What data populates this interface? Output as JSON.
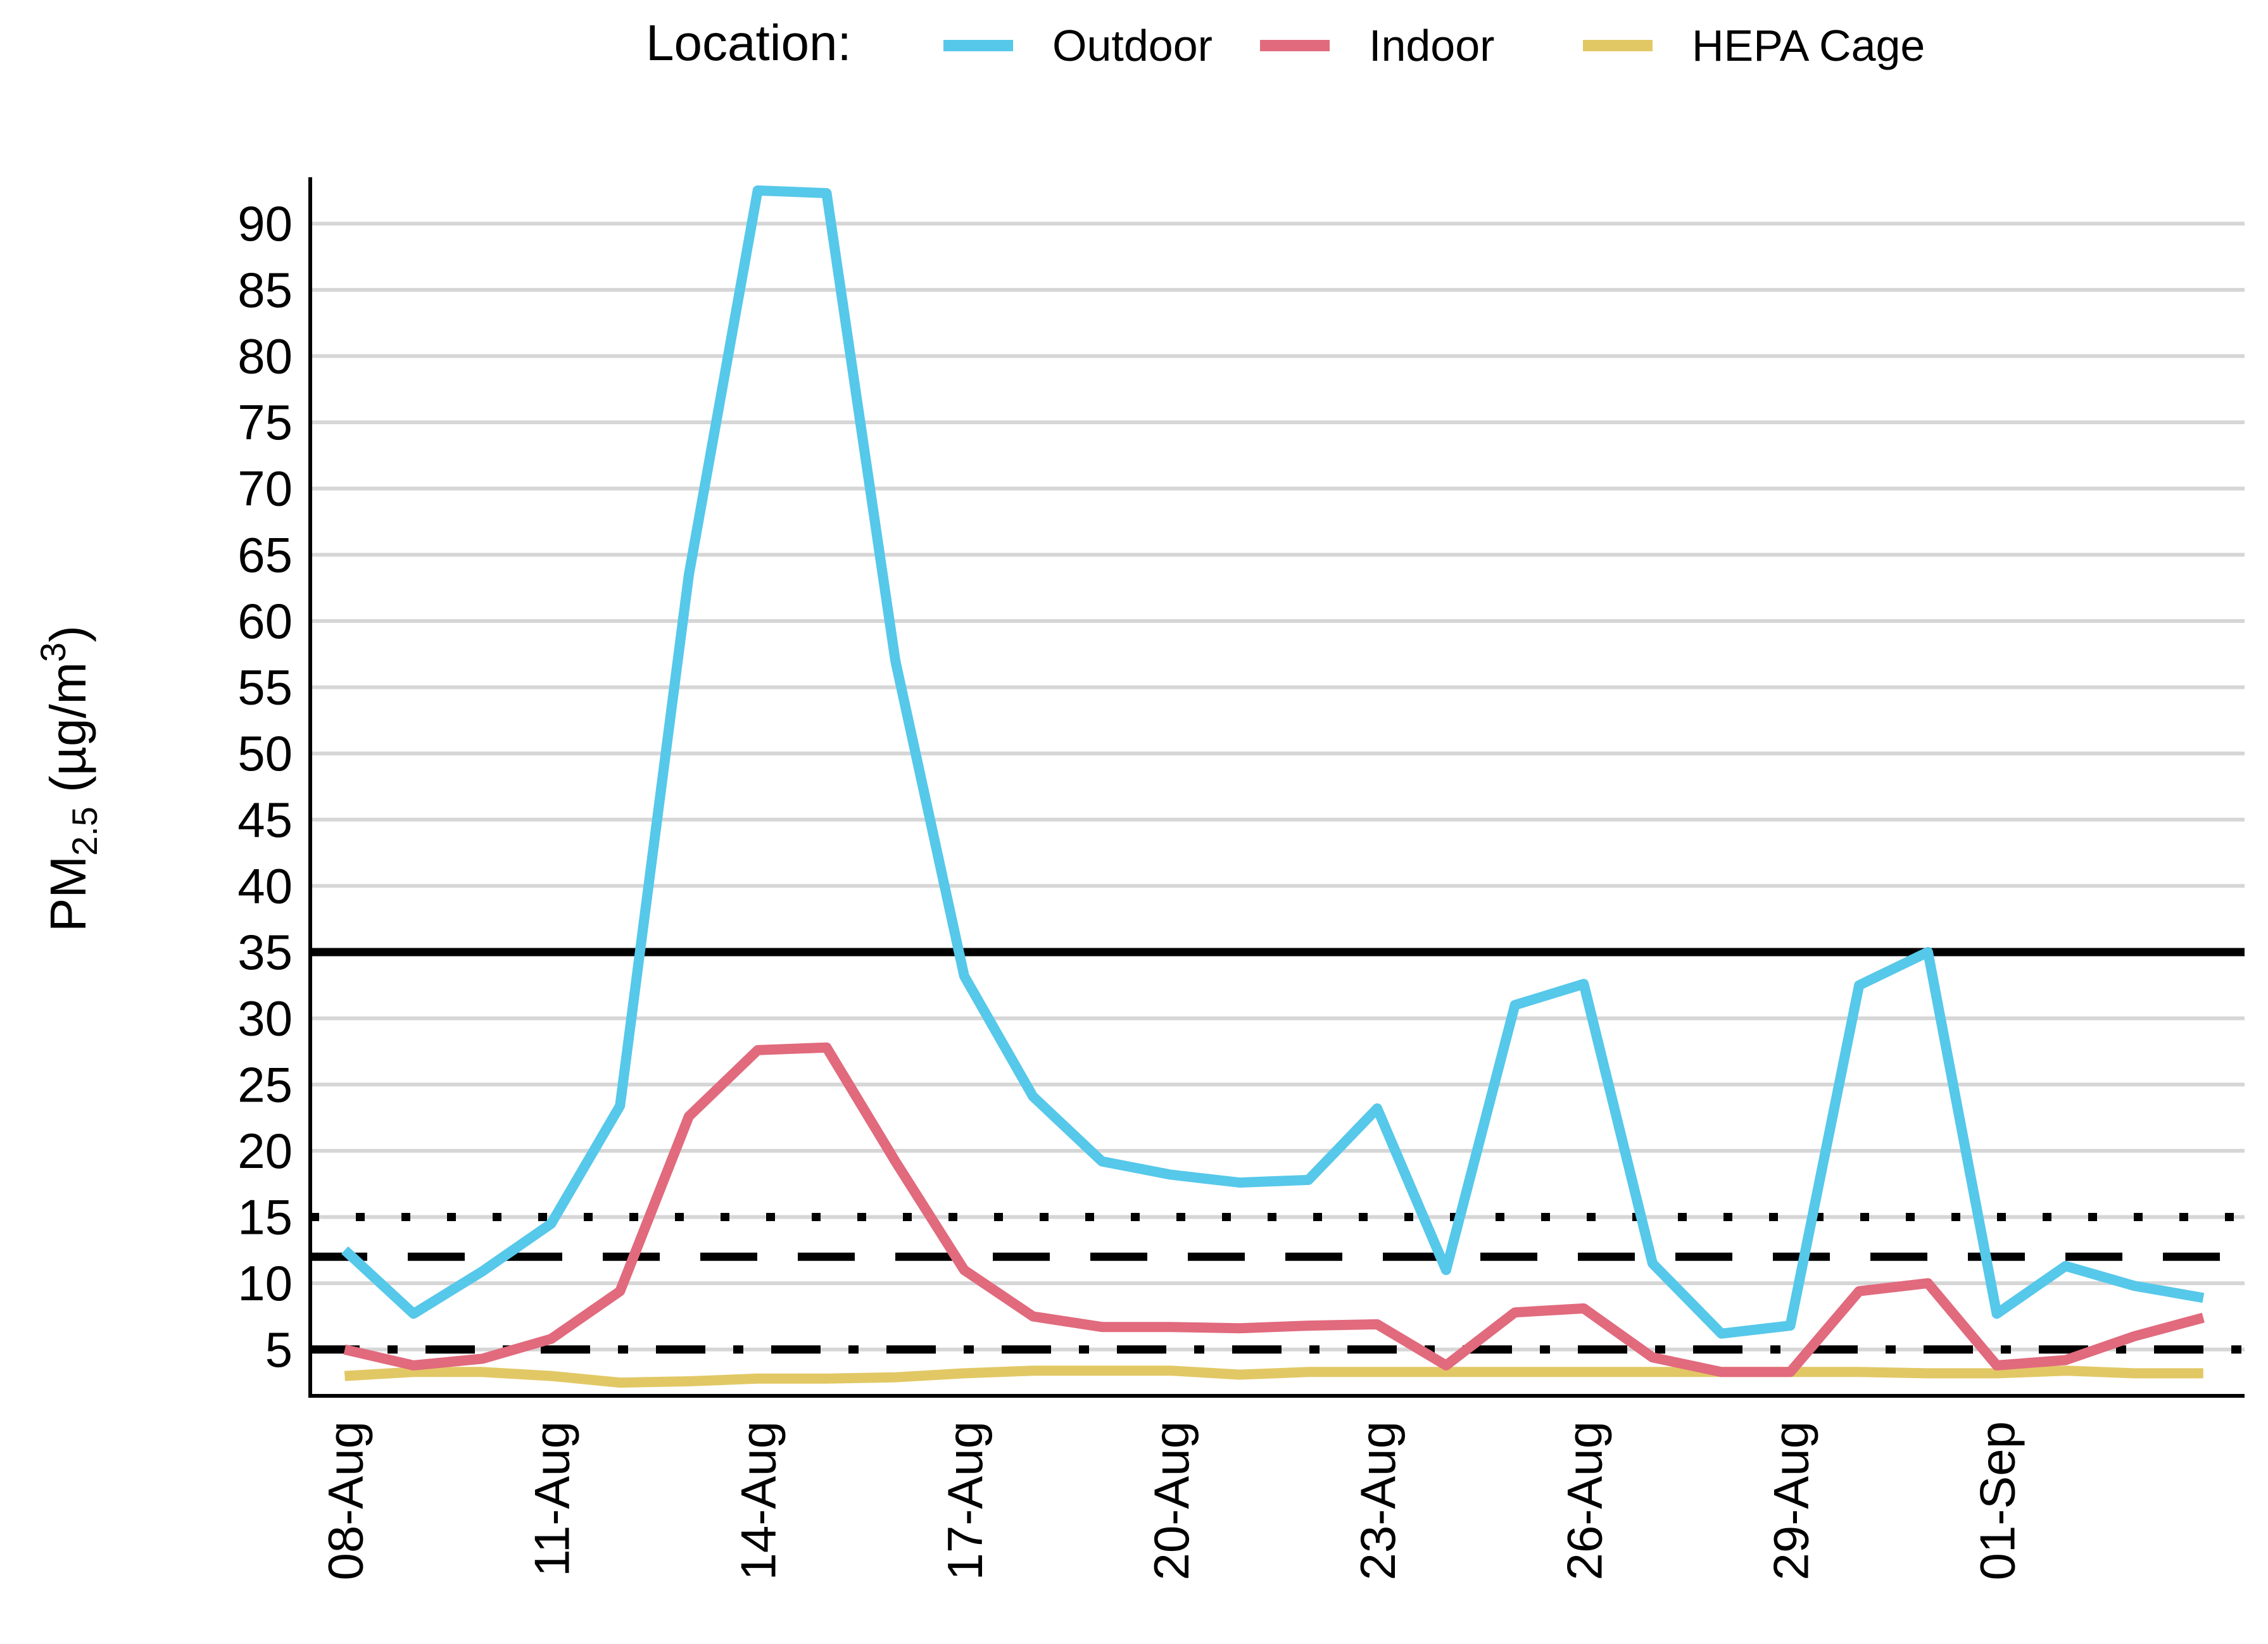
{
  "chart_data": {
    "type": "line",
    "title": "",
    "xlabel": "",
    "ylabel": {
      "main": "PM",
      "sub": "2.5",
      "unit_pre": " (µg/m",
      "unit_sup": "3",
      "unit_post": ")"
    },
    "legend": {
      "title": "Location:",
      "placement": "top"
    },
    "ylim": [
      1.5,
      93.5
    ],
    "yticks": [
      5,
      10,
      15,
      20,
      25,
      30,
      35,
      40,
      45,
      50,
      55,
      60,
      65,
      70,
      75,
      80,
      85,
      90
    ],
    "x_day_range": [
      -0.5,
      27.6
    ],
    "xticks": [
      {
        "label": "08-Aug",
        "day": 0
      },
      {
        "label": "11-Aug",
        "day": 3
      },
      {
        "label": "14-Aug",
        "day": 6
      },
      {
        "label": "17-Aug",
        "day": 9
      },
      {
        "label": "20-Aug",
        "day": 12
      },
      {
        "label": "23-Aug",
        "day": 15
      },
      {
        "label": "26-Aug",
        "day": 18
      },
      {
        "label": "29-Aug",
        "day": 21
      },
      {
        "label": "01-Sep",
        "day": 24
      }
    ],
    "grid": true,
    "series": [
      {
        "name": "Outdoor",
        "color": "#56C8EA",
        "values": [
          12.5,
          7.7,
          10.9,
          14.5,
          23.4,
          63.5,
          92.5,
          92.3,
          57.0,
          33.2,
          24.1,
          19.2,
          18.2,
          17.6,
          17.8,
          23.2,
          11.0,
          31.0,
          32.6,
          11.5,
          6.2,
          6.8,
          32.5,
          35.0,
          7.7,
          11.3,
          9.8,
          8.9
        ]
      },
      {
        "name": "Indoor",
        "color": "#E16A7D",
        "values": [
          5.0,
          3.8,
          4.3,
          5.8,
          9.4,
          22.6,
          27.6,
          27.8,
          19.2,
          11.0,
          7.5,
          6.7,
          6.7,
          6.6,
          6.8,
          6.9,
          3.8,
          7.8,
          8.1,
          4.4,
          3.3,
          3.3,
          9.4,
          10.0,
          3.8,
          4.2,
          6.0,
          7.4
        ]
      },
      {
        "name": "HEPA Cage",
        "color": "#E2C864",
        "values": [
          3.0,
          3.3,
          3.3,
          3.0,
          2.5,
          2.6,
          2.8,
          2.8,
          2.9,
          3.2,
          3.4,
          3.4,
          3.4,
          3.1,
          3.3,
          3.3,
          3.3,
          3.3,
          3.3,
          3.3,
          3.3,
          3.3,
          3.3,
          3.2,
          3.2,
          3.4,
          3.2,
          3.2
        ]
      }
    ],
    "reference_lines": [
      {
        "value": 35,
        "style": "solid"
      },
      {
        "value": 15,
        "style": "dotted"
      },
      {
        "value": 12,
        "style": "dashed"
      },
      {
        "value": 5,
        "style": "dashdot"
      }
    ]
  }
}
